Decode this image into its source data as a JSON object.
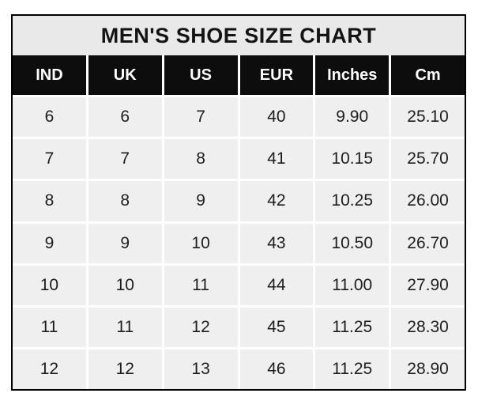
{
  "title": "MEN'S SHOE SIZE CHART",
  "table": {
    "columns": [
      "IND",
      "UK",
      "US",
      "EUR",
      "Inches",
      "Cm"
    ],
    "rows": [
      [
        "6",
        "6",
        "7",
        "40",
        "9.90",
        "25.10"
      ],
      [
        "7",
        "7",
        "8",
        "41",
        "10.15",
        "25.70"
      ],
      [
        "8",
        "8",
        "9",
        "42",
        "10.25",
        "26.00"
      ],
      [
        "9",
        "9",
        "10",
        "43",
        "10.50",
        "26.70"
      ],
      [
        "10",
        "10",
        "11",
        "44",
        "11.00",
        "27.90"
      ],
      [
        "11",
        "11",
        "12",
        "45",
        "11.25",
        "28.30"
      ],
      [
        "12",
        "12",
        "13",
        "46",
        "11.25",
        "28.90"
      ]
    ]
  },
  "colors": {
    "page_background": "#ffffff",
    "border": "#000000",
    "title_background": "#e9e9e9",
    "header_background": "#0d0d0d",
    "header_text": "#ffffff",
    "cell_background": "#efefef",
    "cell_text": "#1d1d1d"
  },
  "chart_data": {
    "type": "table",
    "title": "MEN'S SHOE SIZE CHART",
    "columns": [
      "IND",
      "UK",
      "US",
      "EUR",
      "Inches",
      "Cm"
    ],
    "rows": [
      [
        6,
        6,
        7,
        40,
        9.9,
        25.1
      ],
      [
        7,
        7,
        8,
        41,
        10.15,
        25.7
      ],
      [
        8,
        8,
        9,
        42,
        10.25,
        26.0
      ],
      [
        9,
        9,
        10,
        43,
        10.5,
        26.7
      ],
      [
        10,
        10,
        11,
        44,
        11.0,
        27.9
      ],
      [
        11,
        11,
        12,
        45,
        11.25,
        28.3
      ],
      [
        12,
        12,
        13,
        46,
        11.25,
        28.9
      ]
    ]
  }
}
